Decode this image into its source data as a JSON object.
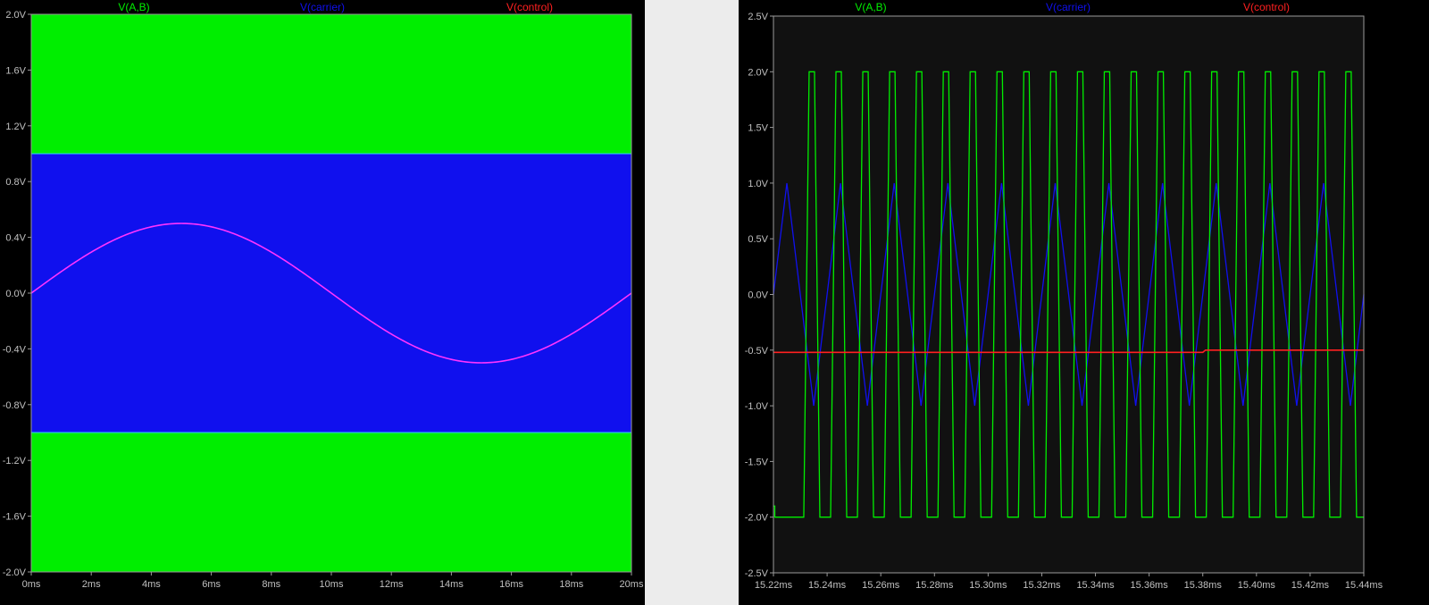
{
  "colors": {
    "background": "#000000",
    "plot_left": "#000000",
    "plot_right": "#111111",
    "grid": "#3a3a3a",
    "frame": "#9a9a9a",
    "tick_text": "#c0c0c0",
    "v_ab": "#00ee00",
    "v_carrier": "#1010ee",
    "v_control": "#ff2020",
    "v_control_left": "#ff33ff",
    "edge_left": "#33ccff"
  },
  "chart_data": [
    {
      "type": "area",
      "legend": [
        {
          "label": "V(A,B)",
          "color": "#00ee00"
        },
        {
          "label": "V(carrier)",
          "color": "#1010ee"
        },
        {
          "label": "V(control)",
          "color": "#ff2020"
        }
      ],
      "xlim": [
        0,
        20
      ],
      "ylim": [
        -2.0,
        2.0
      ],
      "x_tick_labels": [
        "0ms",
        "2ms",
        "4ms",
        "6ms",
        "8ms",
        "10ms",
        "12ms",
        "14ms",
        "16ms",
        "18ms",
        "20ms"
      ],
      "x_ticks": [
        0,
        2,
        4,
        6,
        8,
        10,
        12,
        14,
        16,
        18,
        20
      ],
      "y_tick_labels": [
        "2.0V",
        "1.6V",
        "1.2V",
        "0.8V",
        "0.4V",
        "0.0V",
        "-0.4V",
        "-0.8V",
        "-1.2V",
        "-1.6V",
        "-2.0V"
      ],
      "y_ticks": [
        2.0,
        1.6,
        1.2,
        0.8,
        0.4,
        0.0,
        -0.4,
        -0.8,
        -1.2,
        -1.6,
        -2.0
      ],
      "series": [
        {
          "name": "V(A,B)",
          "type": "band",
          "y_low": -2.0,
          "y_high": 2.0
        },
        {
          "name": "V(carrier)",
          "type": "band",
          "y_low": -1.0,
          "y_high": 1.0
        },
        {
          "name": "V(control)",
          "type": "sine",
          "amplitude": 0.5,
          "period": 20,
          "x_start": 0,
          "x_end": 20
        }
      ]
    },
    {
      "type": "line",
      "legend": [
        {
          "label": "V(A,B)",
          "color": "#00ee00"
        },
        {
          "label": "V(carrier)",
          "color": "#1010ee"
        },
        {
          "label": "V(control)",
          "color": "#ff2020"
        }
      ],
      "xlim": [
        15.22,
        15.44
      ],
      "ylim": [
        -2.5,
        2.5
      ],
      "x_tick_labels": [
        "15.22ms",
        "15.24ms",
        "15.26ms",
        "15.28ms",
        "15.30ms",
        "15.32ms",
        "15.34ms",
        "15.36ms",
        "15.38ms",
        "15.40ms",
        "15.42ms",
        "15.44ms"
      ],
      "x_ticks": [
        15.22,
        15.24,
        15.26,
        15.28,
        15.3,
        15.32,
        15.34,
        15.36,
        15.38,
        15.4,
        15.42,
        15.44
      ],
      "y_tick_labels": [
        "2.5V",
        "2.0V",
        "1.5V",
        "1.0V",
        "0.5V",
        "0.0V",
        "-0.5V",
        "-1.0V",
        "-1.5V",
        "-2.0V",
        "-2.5V"
      ],
      "y_ticks": [
        2.5,
        2.0,
        1.5,
        1.0,
        0.5,
        0.0,
        -0.5,
        -1.0,
        -1.5,
        -2.0,
        -2.5
      ],
      "series": [
        {
          "name": "V(carrier)",
          "x": [
            15.22,
            15.225,
            15.235,
            15.245,
            15.255,
            15.265,
            15.275,
            15.285,
            15.295,
            15.305,
            15.315,
            15.325,
            15.335,
            15.345,
            15.355,
            15.365,
            15.375,
            15.385,
            15.395,
            15.405,
            15.415,
            15.425,
            15.435,
            15.44
          ],
          "y": [
            0.0,
            1.0,
            -1.0,
            1.0,
            -1.0,
            1.0,
            -1.0,
            1.0,
            -1.0,
            1.0,
            -1.0,
            1.0,
            -1.0,
            1.0,
            -1.0,
            1.0,
            -1.0,
            1.0,
            -1.0,
            1.0,
            -1.0,
            1.0,
            -1.0,
            0.0
          ]
        },
        {
          "name": "V(control)",
          "x": [
            15.22,
            15.38,
            15.381,
            15.44
          ],
          "y": [
            -0.52,
            -0.52,
            -0.5,
            -0.5
          ]
        },
        {
          "name": "V(A,B)",
          "x": [
            15.22,
            15.2205,
            15.2205,
            15.2313,
            15.2333,
            15.2353,
            15.2373,
            15.2413,
            15.2433,
            15.2453,
            15.2473,
            15.2513,
            15.2533,
            15.2553,
            15.2573,
            15.2613,
            15.2633,
            15.2653,
            15.2673,
            15.2713,
            15.2733,
            15.2753,
            15.2773,
            15.2813,
            15.2833,
            15.2853,
            15.2873,
            15.2913,
            15.2933,
            15.2953,
            15.2973,
            15.3013,
            15.3033,
            15.3053,
            15.3073,
            15.3113,
            15.3133,
            15.3153,
            15.3173,
            15.3213,
            15.3233,
            15.3253,
            15.3273,
            15.3313,
            15.3333,
            15.3353,
            15.3373,
            15.3413,
            15.3433,
            15.3453,
            15.3473,
            15.3513,
            15.3533,
            15.3553,
            15.3573,
            15.3613,
            15.3633,
            15.3653,
            15.3673,
            15.3713,
            15.3733,
            15.3753,
            15.3773,
            15.3813,
            15.3833,
            15.3853,
            15.3873,
            15.3913,
            15.3933,
            15.3953,
            15.3973,
            15.4013,
            15.4033,
            15.4053,
            15.4073,
            15.4113,
            15.4133,
            15.4153,
            15.4173,
            15.4213,
            15.4233,
            15.4253,
            15.4273,
            15.4313,
            15.4333,
            15.4353,
            15.4373,
            15.44
          ],
          "y": [
            -1.9,
            -1.9,
            -2.0,
            -2.0,
            2.0,
            2.0,
            -2.0,
            -2.0,
            2.0,
            2.0,
            -2.0,
            -2.0,
            2.0,
            2.0,
            -2.0,
            -2.0,
            2.0,
            2.0,
            -2.0,
            -2.0,
            2.0,
            2.0,
            -2.0,
            -2.0,
            2.0,
            2.0,
            -2.0,
            -2.0,
            2.0,
            2.0,
            -2.0,
            -2.0,
            2.0,
            2.0,
            -2.0,
            -2.0,
            2.0,
            2.0,
            -2.0,
            -2.0,
            2.0,
            2.0,
            -2.0,
            -2.0,
            2.0,
            2.0,
            -2.0,
            -2.0,
            2.0,
            2.0,
            -2.0,
            -2.0,
            2.0,
            2.0,
            -2.0,
            -2.0,
            2.0,
            2.0,
            -2.0,
            -2.0,
            2.0,
            2.0,
            -2.0,
            -2.0,
            2.0,
            2.0,
            -2.0,
            -2.0,
            2.0,
            2.0,
            -2.0,
            -2.0,
            2.0,
            2.0,
            -2.0,
            -2.0,
            2.0,
            2.0,
            -2.0,
            -2.0,
            2.0,
            2.0,
            -2.0,
            -2.0,
            2.0,
            2.0,
            -2.0,
            -2.0
          ]
        }
      ]
    }
  ]
}
